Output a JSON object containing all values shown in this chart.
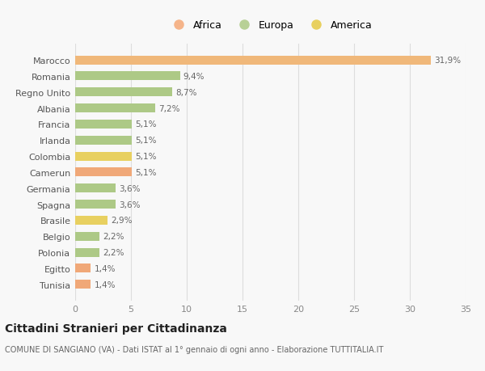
{
  "countries": [
    "Tunisia",
    "Egitto",
    "Polonia",
    "Belgio",
    "Brasile",
    "Spagna",
    "Germania",
    "Camerun",
    "Colombia",
    "Irlanda",
    "Francia",
    "Albania",
    "Regno Unito",
    "Romania",
    "Marocco"
  ],
  "values": [
    1.4,
    1.4,
    2.2,
    2.2,
    2.9,
    3.6,
    3.6,
    5.1,
    5.1,
    5.1,
    5.1,
    7.2,
    8.7,
    9.4,
    31.9
  ],
  "colors": [
    "#f0a878",
    "#f0a878",
    "#adc986",
    "#adc986",
    "#e8d060",
    "#adc986",
    "#adc986",
    "#f0a878",
    "#e8d060",
    "#adc986",
    "#adc986",
    "#adc986",
    "#adc986",
    "#adc986",
    "#f0b87a"
  ],
  "labels": [
    "1,4%",
    "1,4%",
    "2,2%",
    "2,2%",
    "2,9%",
    "3,6%",
    "3,6%",
    "5,1%",
    "5,1%",
    "5,1%",
    "5,1%",
    "7,2%",
    "8,7%",
    "9,4%",
    "31,9%"
  ],
  "legend": [
    {
      "label": "Africa",
      "color": "#f5b48a"
    },
    {
      "label": "Europa",
      "color": "#b8d096"
    },
    {
      "label": "America",
      "color": "#e8d060"
    }
  ],
  "xlim": [
    0,
    35
  ],
  "xticks": [
    0,
    5,
    10,
    15,
    20,
    25,
    30,
    35
  ],
  "title": "Cittadini Stranieri per Cittadinanza",
  "subtitle": "COMUNE DI SANGIANO (VA) - Dati ISTAT al 1° gennaio di ogni anno - Elaborazione TUTTITALIA.IT",
  "background_color": "#f8f8f8",
  "bar_height": 0.55,
  "africa_color": "#f5b48a",
  "europa_color": "#b8d096",
  "america_color": "#e8d060",
  "marocco_color": "#f0b87a"
}
